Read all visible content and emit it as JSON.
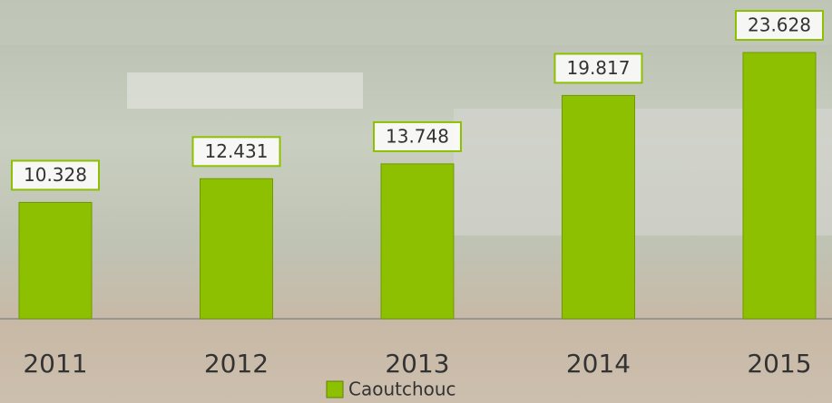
{
  "chart_data": {
    "type": "bar",
    "categories": [
      "2011",
      "2012",
      "2013",
      "2014",
      "2015"
    ],
    "series": [
      {
        "name": "Caoutchouc",
        "color": "#8dc000",
        "values": [
          10.328,
          12.431,
          13.748,
          19.817,
          23.628
        ]
      }
    ]
  }
}
